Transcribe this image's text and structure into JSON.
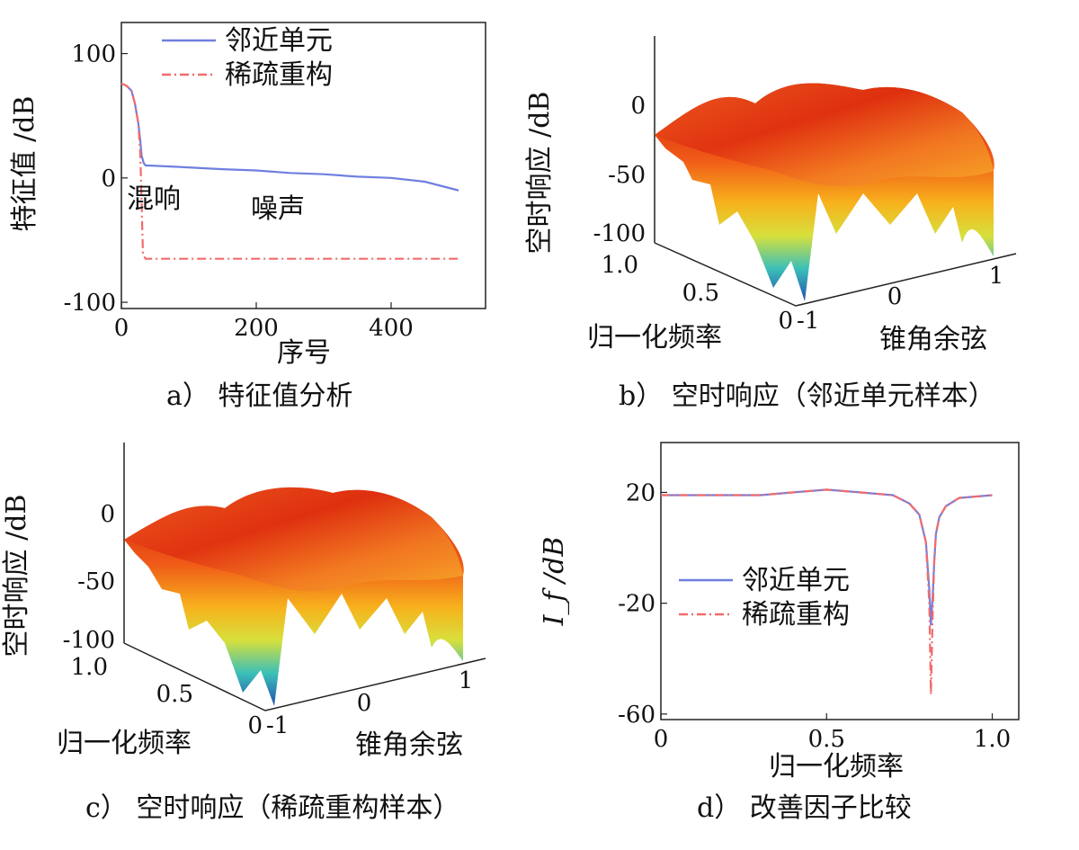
{
  "chart_data": [
    {
      "id": "a",
      "type": "line",
      "caption": "a）  特征值分析",
      "xlabel": "序号",
      "ylabel": "特征值 /dB",
      "xlim": [
        0,
        540
      ],
      "ylim": [
        -105,
        125
      ],
      "xticks": [
        0,
        200,
        400
      ],
      "yticks": [
        100,
        0,
        -100
      ],
      "xtick_labels": [
        "0",
        "200",
        "400"
      ],
      "ytick_labels": [
        "100",
        "0",
        "-100"
      ],
      "legend": [
        "邻近单元",
        "稀疏重构"
      ],
      "annotations": [
        {
          "text": "混响",
          "x": 8,
          "y": -24
        },
        {
          "text": "噪声",
          "x": 192,
          "y": -32
        }
      ],
      "series": [
        {
          "name": "邻近单元",
          "color": "#6f7fe0",
          "style": "solid",
          "x": [
            0,
            8,
            15,
            20,
            25,
            28,
            30,
            33,
            36,
            40,
            80,
            150,
            200,
            250,
            300,
            350,
            400,
            450,
            500
          ],
          "y": [
            76,
            74,
            70,
            60,
            44,
            30,
            18,
            12,
            10,
            10,
            9,
            7,
            6,
            4,
            3,
            1,
            0,
            -3,
            -10
          ]
        },
        {
          "name": "稀疏重构",
          "color": "#f26b6b",
          "style": "dashdot",
          "x": [
            0,
            8,
            15,
            20,
            25,
            28,
            30,
            32,
            36,
            60,
            500
          ],
          "y": [
            76,
            74,
            70,
            60,
            44,
            20,
            -20,
            -62,
            -65,
            -65,
            -65
          ]
        }
      ]
    },
    {
      "id": "b",
      "type": "surface",
      "caption": "b）  空时响应（邻近单元样本）",
      "xlabel": "锥角余弦",
      "ylabel": "归一化频率",
      "zlabel": "空时响应 /dB",
      "zticks": [
        "0",
        "-50",
        "-100"
      ],
      "xticks": [
        "-1",
        "0",
        "1"
      ],
      "yticks": [
        "0",
        "0.5",
        "1.0"
      ],
      "zlim": [
        -110,
        30
      ]
    },
    {
      "id": "c",
      "type": "surface",
      "caption": "c）  空时响应（稀疏重构样本）",
      "xlabel": "锥角余弦",
      "ylabel": "归一化频率",
      "zlabel": "空时响应 /dB",
      "zticks": [
        "0",
        "-50",
        "-100"
      ],
      "xticks": [
        "-1",
        "0",
        "1"
      ],
      "yticks": [
        "0",
        "0.5",
        "1.0"
      ],
      "zlim": [
        -110,
        30
      ]
    },
    {
      "id": "d",
      "type": "line",
      "caption": "d）  改善因子比较",
      "xlabel": "归一化频率",
      "ylabel": "I_f /dB",
      "xlim": [
        0,
        1.08
      ],
      "ylim": [
        -62,
        38
      ],
      "xticks": [
        0,
        0.5,
        1.0
      ],
      "yticks": [
        20,
        -20,
        -60
      ],
      "xtick_labels": [
        "0",
        "0.5",
        "1.0"
      ],
      "ytick_labels": [
        "20",
        "-20",
        "-60"
      ],
      "legend": [
        "邻近单元",
        "稀疏重构"
      ],
      "series": [
        {
          "name": "邻近单元",
          "color": "#6f7fe0",
          "style": "solid",
          "x": [
            0,
            0.1,
            0.2,
            0.3,
            0.4,
            0.5,
            0.6,
            0.7,
            0.75,
            0.78,
            0.8,
            0.81,
            0.815,
            0.82,
            0.825,
            0.83,
            0.84,
            0.86,
            0.9,
            1.0
          ],
          "y": [
            19,
            19,
            19,
            19,
            20,
            21,
            20,
            19,
            16,
            12,
            2,
            -15,
            -28,
            -18,
            -5,
            5,
            11,
            15,
            18,
            19
          ]
        },
        {
          "name": "稀疏重构",
          "color": "#f26b6b",
          "style": "dashdot",
          "x": [
            0,
            0.1,
            0.2,
            0.3,
            0.4,
            0.5,
            0.6,
            0.7,
            0.75,
            0.78,
            0.8,
            0.81,
            0.815,
            0.82,
            0.825,
            0.83,
            0.84,
            0.86,
            0.9,
            1.0
          ],
          "y": [
            19,
            19,
            19,
            19,
            20,
            21,
            20,
            19,
            16,
            12,
            2,
            -20,
            -53,
            -25,
            -5,
            5,
            11,
            15,
            18,
            19
          ]
        }
      ]
    }
  ]
}
